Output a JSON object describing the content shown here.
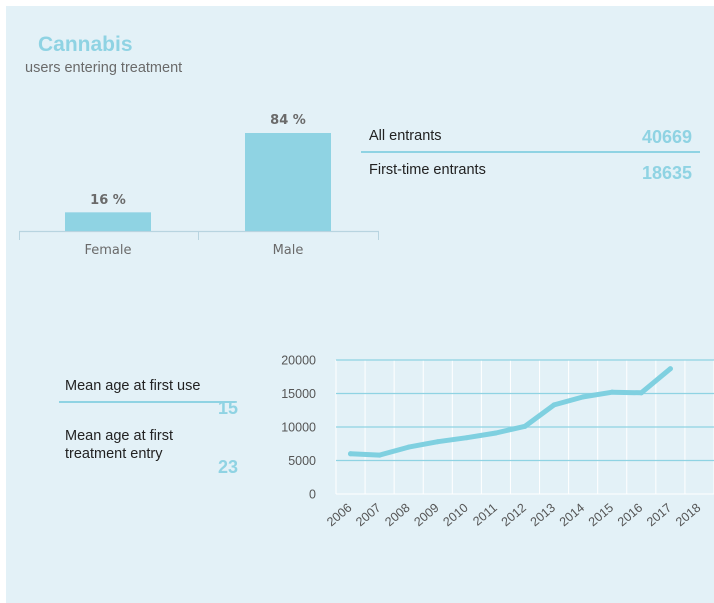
{
  "header": {
    "title": "Cannabis",
    "subtitle": "users entering treatment"
  },
  "colors": {
    "accent": "#8fd3e3",
    "line": "#7fd0e0",
    "panel_bg": "#e3f1f7",
    "axis": "#b8d4e0"
  },
  "stats": [
    {
      "label": "All entrants",
      "value": "40669"
    },
    {
      "label": "First-time entrants",
      "value": "18635"
    }
  ],
  "ages": [
    {
      "label": "Mean age at first use",
      "value": "15"
    },
    {
      "label": "Mean age at first treatment entry",
      "value": "23"
    }
  ],
  "chart_data": [
    {
      "type": "bar",
      "categories": [
        "Female",
        "Male"
      ],
      "values": [
        16,
        84
      ],
      "value_labels": [
        "16 %",
        "84 %"
      ],
      "ylim": [
        0,
        84
      ]
    },
    {
      "type": "line",
      "x": [
        "2006",
        "2007",
        "2008",
        "2009",
        "2010",
        "2011",
        "2012",
        "2013",
        "2014",
        "2015",
        "2016",
        "2017"
      ],
      "values": [
        6000,
        5800,
        7000,
        7800,
        8400,
        9100,
        10100,
        13300,
        14500,
        15200,
        15100,
        18700
      ],
      "x_tick_labels": [
        "2006",
        "2007",
        "2008",
        "2009",
        "2010",
        "2011",
        "2012",
        "2013",
        "2014",
        "2015",
        "2016",
        "2017",
        "2018"
      ],
      "y_ticks": [
        "0",
        "5000",
        "10000",
        "15000",
        "20000"
      ],
      "ylim": [
        0,
        20000
      ],
      "grid": true
    }
  ]
}
